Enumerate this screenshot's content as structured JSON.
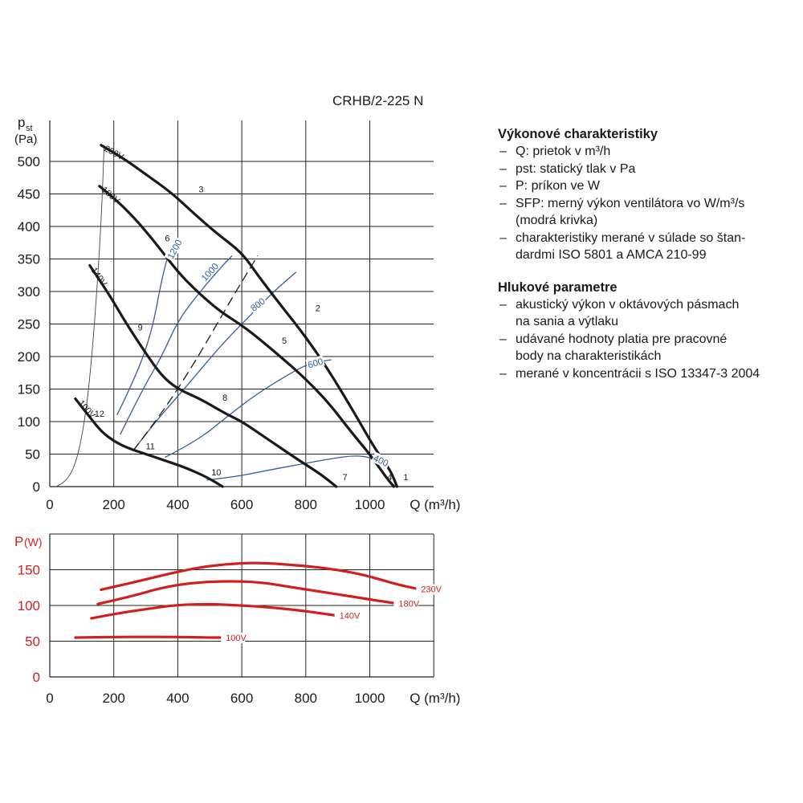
{
  "title": "CRHB/2-225 N",
  "info": {
    "performance_heading": "Výkonové charakteristiky",
    "performance_items": [
      [
        "Q: prietok v m³/h"
      ],
      [
        "pst: statický tlak v Pa"
      ],
      [
        "P: príkon ve W"
      ],
      [
        "SFP: merný výkon ventilátora vo W/m³/s",
        "(modrá krivka)"
      ],
      [
        "charakteristiky merané v súlade so štan-",
        "dardmi ISO 5801 a AMCA 210-99"
      ]
    ],
    "noise_heading": "Hlukové parametre",
    "noise_items": [
      [
        "akustický výkon v oktávových pásmach",
        "na sania a výtlaku"
      ],
      [
        "udávané hodnoty platia pre pracovné",
        "body na charakteristikách"
      ],
      [
        "merané v koncentrácii s ISO 13347-3 2004"
      ]
    ]
  },
  "colors": {
    "black": "#1a1a1a",
    "blue": "#2f5f9e",
    "red": "#d11f1f",
    "grid": "#222222"
  },
  "chart_data": [
    {
      "type": "line",
      "ylabel_main": "p",
      "ylabel_sub": "st",
      "yunit": "(Pa)",
      "xlabel": "Q (m³/h)",
      "xlim": [
        0,
        1200
      ],
      "ylim": [
        0,
        500
      ],
      "xticks": [
        0,
        200,
        400,
        600,
        800,
        1000
      ],
      "yticks": [
        0,
        50,
        100,
        150,
        200,
        250,
        300,
        350,
        400,
        450,
        500
      ],
      "grid": true,
      "fan_curves": [
        {
          "name": "230V",
          "points": [
            [
              160,
              525
            ],
            [
              230,
              505
            ],
            [
              300,
              480
            ],
            [
              380,
              452
            ],
            [
              450,
              420
            ],
            [
              520,
              390
            ],
            [
              600,
              360
            ],
            [
              650,
              325
            ],
            [
              720,
              280
            ],
            [
              800,
              230
            ],
            [
              870,
              180
            ],
            [
              950,
              115
            ],
            [
              1020,
              55
            ],
            [
              1065,
              25
            ],
            [
              1085,
              0
            ]
          ]
        },
        {
          "name": "180V",
          "points": [
            [
              155,
              462
            ],
            [
              210,
              440
            ],
            [
              270,
              410
            ],
            [
              330,
              375
            ],
            [
              400,
              330
            ],
            [
              460,
              300
            ],
            [
              530,
              270
            ],
            [
              600,
              248
            ],
            [
              660,
              225
            ],
            [
              720,
              200
            ],
            [
              790,
              170
            ],
            [
              870,
              130
            ],
            [
              940,
              85
            ],
            [
              1000,
              50
            ],
            [
              1050,
              15
            ],
            [
              1075,
              0
            ]
          ]
        },
        {
          "name": "140V",
          "points": [
            [
              125,
              340
            ],
            [
              180,
              300
            ],
            [
              240,
              250
            ],
            [
              300,
              205
            ],
            [
              350,
              170
            ],
            [
              400,
              150
            ],
            [
              470,
              135
            ],
            [
              550,
              112
            ],
            [
              600,
              100
            ],
            [
              660,
              80
            ],
            [
              720,
              60
            ],
            [
              780,
              40
            ],
            [
              850,
              18
            ],
            [
              895,
              0
            ]
          ]
        },
        {
          "name": "100V",
          "points": [
            [
              80,
              135
            ],
            [
              120,
              110
            ],
            [
              160,
              85
            ],
            [
              200,
              70
            ],
            [
              240,
              60
            ],
            [
              300,
              50
            ],
            [
              360,
              40
            ],
            [
              420,
              30
            ],
            [
              490,
              15
            ],
            [
              540,
              0
            ]
          ]
        }
      ],
      "system_curve": {
        "name": "dashed",
        "points": [
          [
            260,
            55
          ],
          [
            330,
            100
          ],
          [
            400,
            150
          ],
          [
            470,
            205
          ],
          [
            540,
            265
          ],
          [
            600,
            315
          ],
          [
            650,
            355
          ]
        ]
      },
      "parabola": {
        "points": [
          [
            20,
            0
          ],
          [
            40,
            5
          ],
          [
            60,
            15
          ],
          [
            80,
            35
          ],
          [
            100,
            75
          ],
          [
            120,
            140
          ],
          [
            140,
            250
          ],
          [
            160,
            400
          ],
          [
            170,
            525
          ]
        ]
      },
      "sfp_curves": [
        {
          "name": "1200",
          "points": [
            [
              210,
              110
            ],
            [
              270,
              170
            ],
            [
              320,
              240
            ],
            [
              350,
              320
            ],
            [
              380,
              375
            ],
            [
              410,
              375
            ]
          ]
        },
        {
          "name": "1000",
          "points": [
            [
              220,
              80
            ],
            [
              290,
              150
            ],
            [
              350,
              200
            ],
            [
              400,
              255
            ],
            [
              470,
              300
            ],
            [
              540,
              340
            ],
            [
              570,
              355
            ]
          ]
        },
        {
          "name": "800",
          "points": [
            [
              260,
              55
            ],
            [
              330,
              100
            ],
            [
              420,
              150
            ],
            [
              540,
              220
            ],
            [
              630,
              265
            ],
            [
              700,
              300
            ],
            [
              770,
              330
            ]
          ]
        },
        {
          "name": "600",
          "points": [
            [
              360,
              45
            ],
            [
              460,
              70
            ],
            [
              560,
              110
            ],
            [
              640,
              140
            ],
            [
              720,
              165
            ],
            [
              810,
              190
            ],
            [
              880,
              195
            ]
          ]
        },
        {
          "name": "400",
          "points": [
            [
              490,
              10
            ],
            [
              580,
              15
            ],
            [
              680,
              25
            ],
            [
              790,
              35
            ],
            [
              880,
              43
            ],
            [
              950,
              48
            ],
            [
              1005,
              45
            ],
            [
              1030,
              30
            ],
            [
              1060,
              10
            ],
            [
              1080,
              0
            ]
          ]
        }
      ],
      "point_labels": [
        {
          "label": "1",
          "x": 1085,
          "y": 0
        },
        {
          "label": "2",
          "x": 810,
          "y": 265
        },
        {
          "label": "3",
          "x": 445,
          "y": 455
        },
        {
          "label": "4",
          "x": 1070,
          "y": 0
        },
        {
          "label": "5",
          "x": 705,
          "y": 215
        },
        {
          "label": "6",
          "x": 380,
          "y": 370
        },
        {
          "label": "7",
          "x": 895,
          "y": 0
        },
        {
          "label": "8",
          "x": 560,
          "y": 125
        },
        {
          "label": "9",
          "x": 290,
          "y": 230
        },
        {
          "label": "10",
          "x": 540,
          "y": 10
        },
        {
          "label": "11",
          "x": 335,
          "y": 50
        },
        {
          "label": "12",
          "x": 175,
          "y": 100
        }
      ]
    },
    {
      "type": "line",
      "ylabel_main": "P",
      "yunit": "(W)",
      "xlabel": "Q (m³/h)",
      "xlim": [
        0,
        1200
      ],
      "ylim": [
        0,
        175
      ],
      "xticks": [
        0,
        200,
        400,
        600,
        800,
        1000
      ],
      "yticks": [
        0,
        50,
        100,
        150
      ],
      "grid": true,
      "series": [
        {
          "name": "230V",
          "points": [
            [
              160,
              122
            ],
            [
              260,
              132
            ],
            [
              350,
              142
            ],
            [
              450,
              152
            ],
            [
              550,
              158
            ],
            [
              650,
              160
            ],
            [
              750,
              157
            ],
            [
              850,
              153
            ],
            [
              950,
              146
            ],
            [
              1020,
              138
            ],
            [
              1080,
              130
            ],
            [
              1150,
              123
            ]
          ]
        },
        {
          "name": "180V",
          "points": [
            [
              150,
              102
            ],
            [
              250,
              112
            ],
            [
              350,
              125
            ],
            [
              450,
              132
            ],
            [
              550,
              134
            ],
            [
              650,
              133
            ],
            [
              750,
              126
            ],
            [
              850,
              119
            ],
            [
              950,
              112
            ],
            [
              1020,
              107
            ],
            [
              1080,
              103
            ]
          ]
        },
        {
          "name": "140V",
          "points": [
            [
              130,
              82
            ],
            [
              200,
              88
            ],
            [
              300,
              95
            ],
            [
              400,
              101
            ],
            [
              500,
              102
            ],
            [
              600,
              100
            ],
            [
              700,
              97
            ],
            [
              800,
              92
            ],
            [
              895,
              86
            ]
          ]
        },
        {
          "name": "100V",
          "points": [
            [
              80,
              55
            ],
            [
              200,
              56
            ],
            [
              300,
              56
            ],
            [
              400,
              56
            ],
            [
              500,
              55
            ],
            [
              540,
              55
            ]
          ]
        }
      ]
    }
  ]
}
